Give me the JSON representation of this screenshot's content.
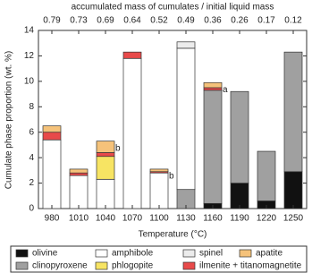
{
  "chart_data": {
    "type": "stacked_bar",
    "title": "accumulated mass of cumulates / initial liquid mass",
    "top_labels": [
      0.79,
      0.73,
      0.69,
      0.64,
      0.52,
      0.49,
      0.36,
      0.26,
      0.17,
      0.12
    ],
    "x_label": "Temperature (°C)",
    "y_label": "Cumulate phase proportion (wt. %)",
    "categories": [
      "980",
      "1010",
      "1040",
      "1070",
      "1100",
      "1130",
      "1160",
      "1190",
      "1220",
      "1250"
    ],
    "notes": [
      null,
      null,
      "b",
      null,
      "b",
      null,
      "a",
      null,
      null,
      null
    ],
    "ylim": [
      0,
      14
    ],
    "yticks": [
      0,
      2,
      4,
      6,
      8,
      10,
      12,
      14
    ],
    "series": [
      {
        "name": "olivine",
        "color": "#111111",
        "values": [
          null,
          null,
          null,
          null,
          null,
          null,
          0.4,
          2.0,
          0.6,
          2.9
        ]
      },
      {
        "name": "clinopyroxene",
        "color": "#a0a0a0",
        "values": [
          null,
          null,
          null,
          null,
          null,
          1.5,
          8.9,
          7.2,
          3.9,
          9.4
        ]
      },
      {
        "name": "amphibole",
        "color": "#ffffff",
        "values": [
          5.4,
          2.6,
          2.3,
          11.8,
          2.8,
          11.1,
          null,
          null,
          null,
          null
        ]
      },
      {
        "name": "phlogopite",
        "color": "#f7e463",
        "values": [
          null,
          null,
          1.8,
          null,
          null,
          null,
          null,
          null,
          null,
          null
        ]
      },
      {
        "name": "spinel",
        "color": "#ececec",
        "values": [
          null,
          null,
          null,
          null,
          null,
          0.5,
          null,
          null,
          null,
          null
        ]
      },
      {
        "name": "ilmenite + titanomagnetite",
        "color": "#e84a4a",
        "values": [
          0.6,
          0.2,
          0.3,
          0.5,
          0.1,
          null,
          0.2,
          null,
          null,
          null
        ]
      },
      {
        "name": "apatite",
        "color": "#f5c27a",
        "values": [
          0.5,
          0.3,
          0.9,
          null,
          0.2,
          null,
          0.4,
          null,
          null,
          null
        ]
      }
    ]
  }
}
